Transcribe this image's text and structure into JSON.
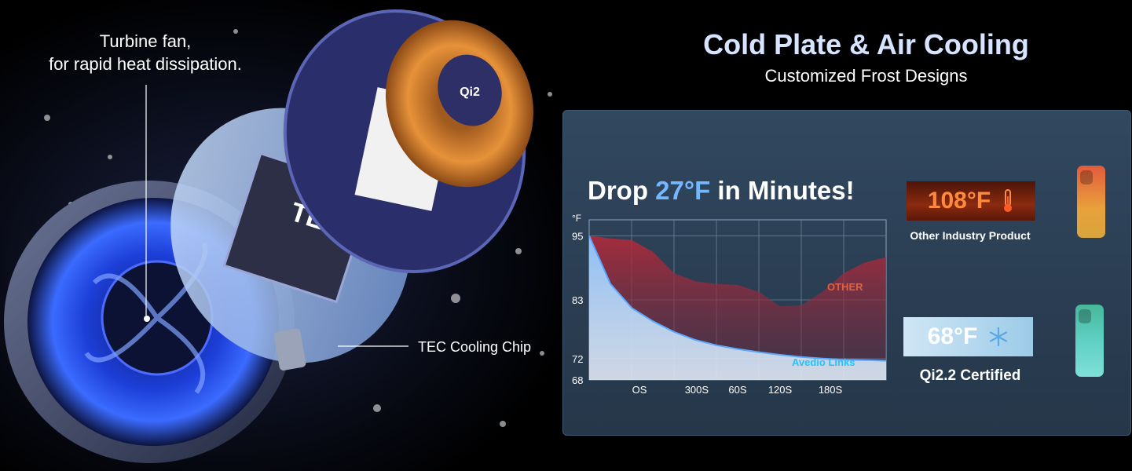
{
  "annotations": {
    "fan": [
      "Turbine fan,",
      "for rapid heat dissipation."
    ],
    "chip_label": "TEC",
    "tec": "TEC Cooling Chip",
    "qi_logo": "Qi2"
  },
  "header": {
    "title": "Cold Plate & Air Cooling",
    "subtitle": "Customized Frost Designs"
  },
  "headline": {
    "prefix": "Drop ",
    "accent": "27°F",
    "suffix": " in Minutes!"
  },
  "badges": {
    "hot": {
      "value": "108°F",
      "caption": "Other Industry Product",
      "icon": "thermometer-icon",
      "color": "#ff8a3d"
    },
    "cold": {
      "value": "68°F",
      "caption": "Qi2.2 Certified",
      "icon": "snowflake-icon",
      "color": "#74b7ff"
    }
  },
  "chart_data": {
    "type": "area",
    "ylabel": "°F",
    "ylim": [
      68,
      98
    ],
    "yticks": [
      68,
      72,
      83,
      95
    ],
    "categories": [
      "OS",
      "300S",
      "60S",
      "120S",
      "180S"
    ],
    "x": [
      0,
      0.5,
      1,
      1.5,
      2,
      2.5,
      3,
      3.5,
      4,
      4.5,
      5,
      5.5,
      6,
      6.5,
      7
    ],
    "series": [
      {
        "name": "OTHER",
        "color": "#c8353a",
        "values": [
          95,
          94.5,
          94.2,
          92,
          88,
          86.5,
          86,
          85.8,
          84.5,
          81.8,
          82,
          84.5,
          88,
          90,
          91
        ]
      },
      {
        "name": "Avedio Links",
        "color": "#6fb4ff",
        "values": [
          95,
          86,
          81.5,
          79,
          77,
          75.5,
          74.5,
          73.8,
          73.2,
          72.7,
          72.3,
          72,
          71.8,
          71.7,
          71.6
        ]
      }
    ],
    "grid": true
  }
}
